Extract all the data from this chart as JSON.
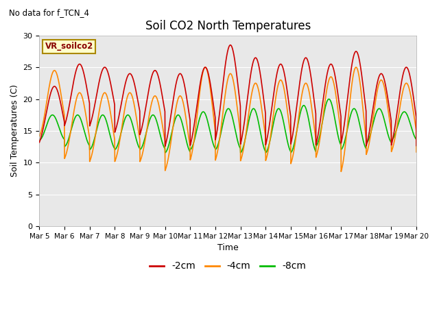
{
  "title": "Soil CO2 North Temperatures",
  "subtitle": "No data for f_TCN_4",
  "ylabel": "Soil Temperatures (C)",
  "xlabel": "Time",
  "legend_label": "VR_soilco2",
  "ylim": [
    0,
    30
  ],
  "yticks": [
    0,
    5,
    10,
    15,
    20,
    25,
    30
  ],
  "xtick_labels": [
    "Mar 5",
    "Mar 6",
    "Mar 7",
    "Mar 8",
    "Mar 9",
    "Mar 10",
    "Mar 11",
    "Mar 12",
    "Mar 13",
    "Mar 14",
    "Mar 15",
    "Mar 16",
    "Mar 17",
    "Mar 18",
    "Mar 19",
    "Mar 20"
  ],
  "color_2cm": "#cc0000",
  "color_4cm": "#ff8800",
  "color_8cm": "#00bb00",
  "bg_color": "#e8e8e8",
  "legend_box_color": "#ffffcc",
  "legend_box_edge": "#aa8800",
  "t_2cm_peaks": [
    22,
    25.5,
    25.0,
    24.0,
    24.5,
    24.0,
    25.0,
    28.5,
    26.5,
    25.5,
    26.5,
    25.5,
    27.5,
    24.0,
    25.0
  ],
  "t_2cm_mins": [
    12.0,
    14.5,
    14.5,
    13.5,
    13.0,
    11.0,
    11.0,
    11.5,
    11.0,
    11.0,
    11.0,
    11.0,
    11.0,
    11.0,
    11.0
  ],
  "t_4cm_peaks": [
    24.5,
    21.0,
    21.0,
    21.0,
    20.5,
    20.5,
    25.0,
    24.0,
    22.5,
    23.0,
    22.5,
    23.5,
    25.0,
    23.0,
    22.5
  ],
  "t_4cm_mins": [
    13.5,
    10.0,
    9.5,
    9.5,
    9.5,
    8.0,
    9.5,
    9.5,
    9.5,
    9.5,
    9.0,
    10.0,
    7.5,
    10.5,
    11.0
  ],
  "t_8cm_peaks": [
    17.5,
    17.5,
    17.5,
    17.5,
    17.5,
    17.5,
    18.0,
    18.5,
    18.5,
    18.5,
    19.0,
    20.0,
    18.5,
    18.5,
    18.0
  ],
  "t_8cm_mins": [
    13.5,
    12.5,
    12.0,
    12.0,
    12.0,
    11.5,
    12.0,
    12.0,
    11.5,
    11.5,
    11.5,
    12.5,
    12.0,
    13.0,
    13.5
  ]
}
